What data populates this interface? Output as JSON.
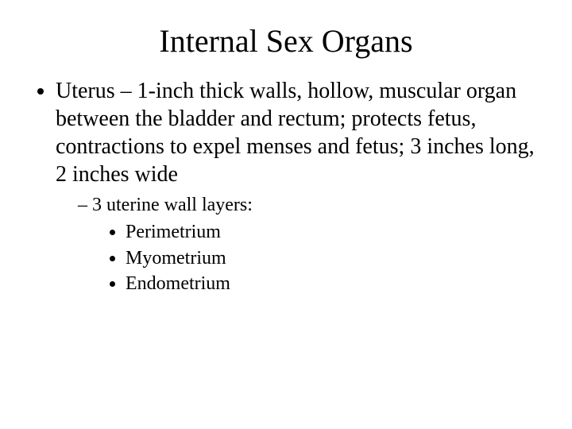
{
  "title": "Internal Sex Organs",
  "bullets": {
    "l1": "Uterus – 1-inch thick walls, hollow, muscular organ between the bladder and rectum; protects fetus, contractions to expel menses and fetus; 3 inches long, 2 inches wide",
    "l2": "3 uterine wall layers:",
    "l3a": "Perimetrium",
    "l3b": "Myometrium",
    "l3c": "Endometrium"
  },
  "style": {
    "background_color": "#ffffff",
    "text_color": "#000000",
    "title_fontsize": 40,
    "body_fontsize": 28,
    "sub_fontsize": 24,
    "font_family": "Times New Roman"
  }
}
